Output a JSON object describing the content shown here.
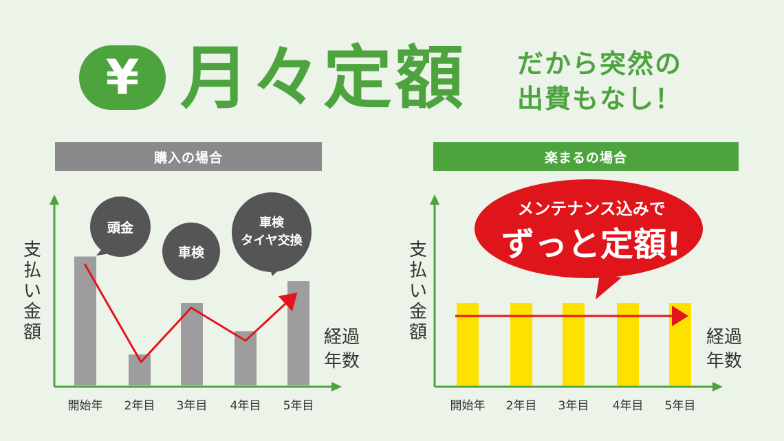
{
  "header": {
    "yen_symbol": "¥",
    "headline": "月々定額",
    "tagline_line1": "だから突然の",
    "tagline_line2": "出費もなし！"
  },
  "colors": {
    "brand_green": "#4da43f",
    "background": "#ecf3e9",
    "purchase_bar": "#9d9d9d",
    "rental_bar": "#ffe100",
    "trend_line": "#e3141c",
    "bubble_dark": "#555555",
    "callout_red": "#e0141b"
  },
  "left_panel": {
    "banner": "購入の場合",
    "y_label": "支払い金額",
    "x_label_line1": "経過",
    "x_label_line2": "年数",
    "bubbles": [
      {
        "lines": [
          "頭金"
        ]
      },
      {
        "lines": [
          "車検"
        ]
      },
      {
        "lines": [
          "車検",
          "タイヤ交換"
        ]
      }
    ]
  },
  "right_panel": {
    "banner": "楽まるの場合",
    "y_label": "支払い金額",
    "x_label_line1": "経過",
    "x_label_line2": "年数",
    "callout_line1": "メンテナンス込みで",
    "callout_line2": "ずっと定額!"
  },
  "chart_data": [
    {
      "type": "bar",
      "title": "購入の場合",
      "ylabel": "支払い金額",
      "xlabel": "経過年数",
      "categories": [
        "開始年",
        "2年目",
        "3年目",
        "4年目",
        "5年目"
      ],
      "values": [
        100,
        24,
        64,
        42,
        81
      ],
      "ylim": [
        0,
        120
      ],
      "trend": "up-down line (red arrow)"
    },
    {
      "type": "bar",
      "title": "楽まるの場合",
      "ylabel": "支払い金額",
      "xlabel": "経過年数",
      "categories": [
        "開始年",
        "2年目",
        "3年目",
        "4年目",
        "5年目"
      ],
      "values": [
        64,
        64,
        64,
        64,
        64
      ],
      "ylim": [
        0,
        120
      ],
      "trend": "flat line (red arrow)"
    }
  ]
}
